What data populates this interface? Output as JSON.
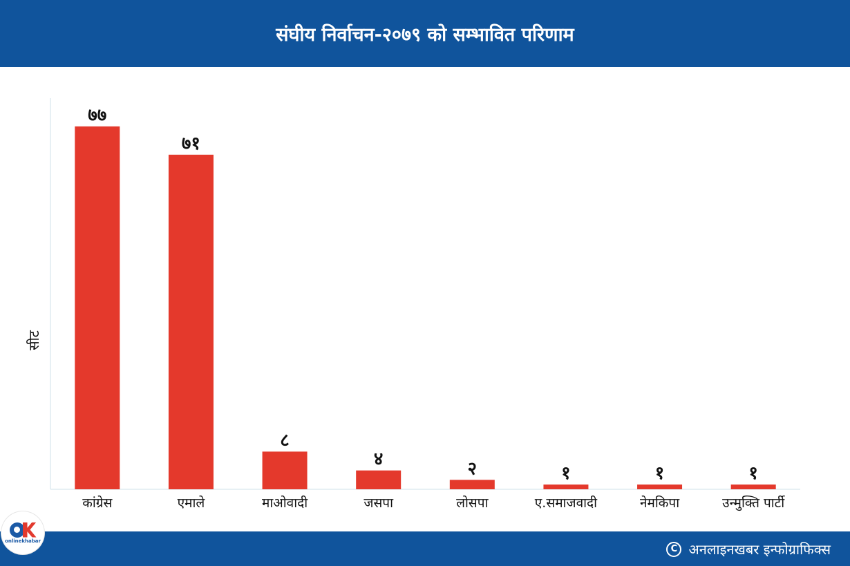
{
  "header": {
    "title": "संघीय निर्वाचन-२०७९ को सम्भावित परिणाम"
  },
  "chart_data": {
    "type": "bar",
    "title": "संघीय निर्वाचन-२०७९ को सम्भावित परिणाम",
    "ylabel": "सीट",
    "xlabel": "",
    "categories": [
      "कांग्रेस",
      "एमाले",
      "माओवादी",
      "जसपा",
      "लोसपा",
      "ए.समाजवादी",
      "नेमकिपा",
      "उन्मुक्ति  पार्टी"
    ],
    "values": [
      77,
      71,
      8,
      4,
      2,
      1,
      1,
      1
    ],
    "value_labels": [
      "७७",
      "७१",
      "८",
      "४",
      "२",
      "१",
      "१",
      "१"
    ],
    "ylim": [
      0,
      83
    ],
    "grid": false,
    "legend": "none",
    "bar_color": "#e4392c"
  },
  "footer": {
    "credit": "अनलाइनखबर इन्फोग्राफिक्स",
    "copyright_symbol": "C"
  },
  "logo": {
    "text": "onlinekhabar"
  },
  "colors": {
    "header_bg": "#10549c",
    "footer_bg": "#10549c",
    "bar": "#e4392c"
  }
}
